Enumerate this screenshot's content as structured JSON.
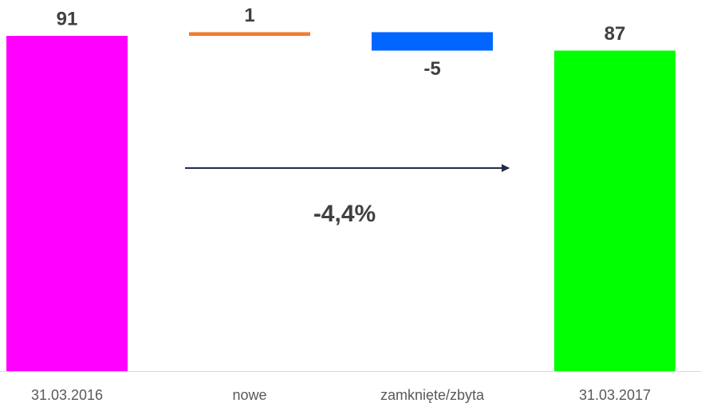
{
  "chart_data": {
    "type": "waterfall",
    "categories": [
      "31.03.2016",
      "nowe",
      "zamknięte/zbyta",
      "31.03.2017"
    ],
    "values": [
      91,
      1,
      -5,
      87
    ],
    "measure": [
      "absolute",
      "relative",
      "relative",
      "absolute"
    ],
    "colors": [
      "#ff00ff",
      "#ed7d31",
      "#0066ff",
      "#00ff00"
    ],
    "ylim": [
      0,
      100
    ],
    "annotation": "-4,4%"
  }
}
